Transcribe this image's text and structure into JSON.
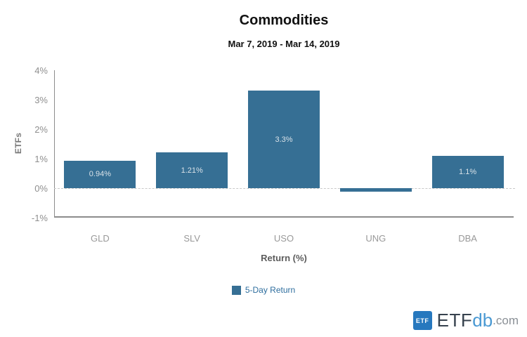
{
  "chart_data": {
    "type": "bar",
    "title": "Commodities",
    "subtitle": "Mar 7, 2019 - Mar 14, 2019",
    "categories": [
      "GLD",
      "SLV",
      "USO",
      "UNG",
      "DBA"
    ],
    "series": [
      {
        "name": "5-Day Return",
        "values": [
          0.94,
          1.21,
          3.3,
          -0.12,
          1.1
        ],
        "data_labels": [
          "0.94%",
          "1.21%",
          "3.3%",
          "",
          "1.1%"
        ]
      }
    ],
    "xlabel": "Return (%)",
    "ylabel": "ETFs",
    "ylim": [
      -1,
      4
    ],
    "yticks": [
      {
        "value": 4,
        "label": "4%"
      },
      {
        "value": 3,
        "label": "3%"
      },
      {
        "value": 2,
        "label": "2%"
      },
      {
        "value": 1,
        "label": "1%"
      },
      {
        "value": 0,
        "label": "0%"
      },
      {
        "value": -1,
        "label": "-1%"
      }
    ],
    "grid": false,
    "zero_line_style": "dashed",
    "legend_position": "bottom-center"
  },
  "colors": {
    "bar": "#366f94",
    "bar_label": "#d9e2e8",
    "axis_line": "#8c8c8c",
    "tick_label": "#8f8f8f",
    "zero_line": "#c9c9c9",
    "title": "#111111",
    "legend_text": "#2e6e9e",
    "logo_icon_bg": "#2778be",
    "logo_db_blue": "#4a99d3",
    "background": "#ffffff"
  },
  "legend": {
    "label": "5-Day Return"
  },
  "branding": {
    "icon_text": "ETF",
    "name_part_etf": "ETF",
    "name_part_db": "db",
    "name_part_com": ".com"
  }
}
